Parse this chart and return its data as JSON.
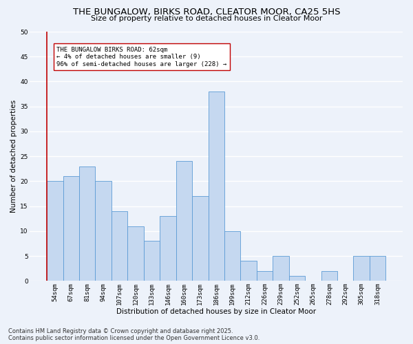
{
  "title": "THE BUNGALOW, BIRKS ROAD, CLEATOR MOOR, CA25 5HS",
  "subtitle": "Size of property relative to detached houses in Cleator Moor",
  "xlabel": "Distribution of detached houses by size in Cleator Moor",
  "ylabel": "Number of detached properties",
  "categories": [
    "54sqm",
    "67sqm",
    "81sqm",
    "94sqm",
    "107sqm",
    "120sqm",
    "133sqm",
    "146sqm",
    "160sqm",
    "173sqm",
    "186sqm",
    "199sqm",
    "212sqm",
    "226sqm",
    "239sqm",
    "252sqm",
    "265sqm",
    "278sqm",
    "292sqm",
    "305sqm",
    "318sqm"
  ],
  "values": [
    20,
    21,
    23,
    20,
    14,
    11,
    8,
    13,
    24,
    17,
    38,
    10,
    4,
    2,
    5,
    1,
    0,
    2,
    0,
    5,
    5
  ],
  "bar_color": "#c5d8f0",
  "bar_edge_color": "#5b9bd5",
  "highlight_index": 0,
  "highlight_color": "#c00000",
  "annotation_text": "THE BUNGALOW BIRKS ROAD: 62sqm\n← 4% of detached houses are smaller (9)\n96% of semi-detached houses are larger (228) →",
  "annotation_box_color": "#ffffff",
  "annotation_border_color": "#c00000",
  "ylim": [
    0,
    50
  ],
  "yticks": [
    0,
    5,
    10,
    15,
    20,
    25,
    30,
    35,
    40,
    45,
    50
  ],
  "footer_line1": "Contains HM Land Registry data © Crown copyright and database right 2025.",
  "footer_line2": "Contains public sector information licensed under the Open Government Licence v3.0.",
  "background_color": "#edf2fa",
  "plot_background": "#edf2fa",
  "grid_color": "#ffffff",
  "title_fontsize": 9.5,
  "subtitle_fontsize": 8,
  "axis_label_fontsize": 7.5,
  "tick_fontsize": 6.5,
  "annotation_fontsize": 6.5,
  "footer_fontsize": 6.0
}
